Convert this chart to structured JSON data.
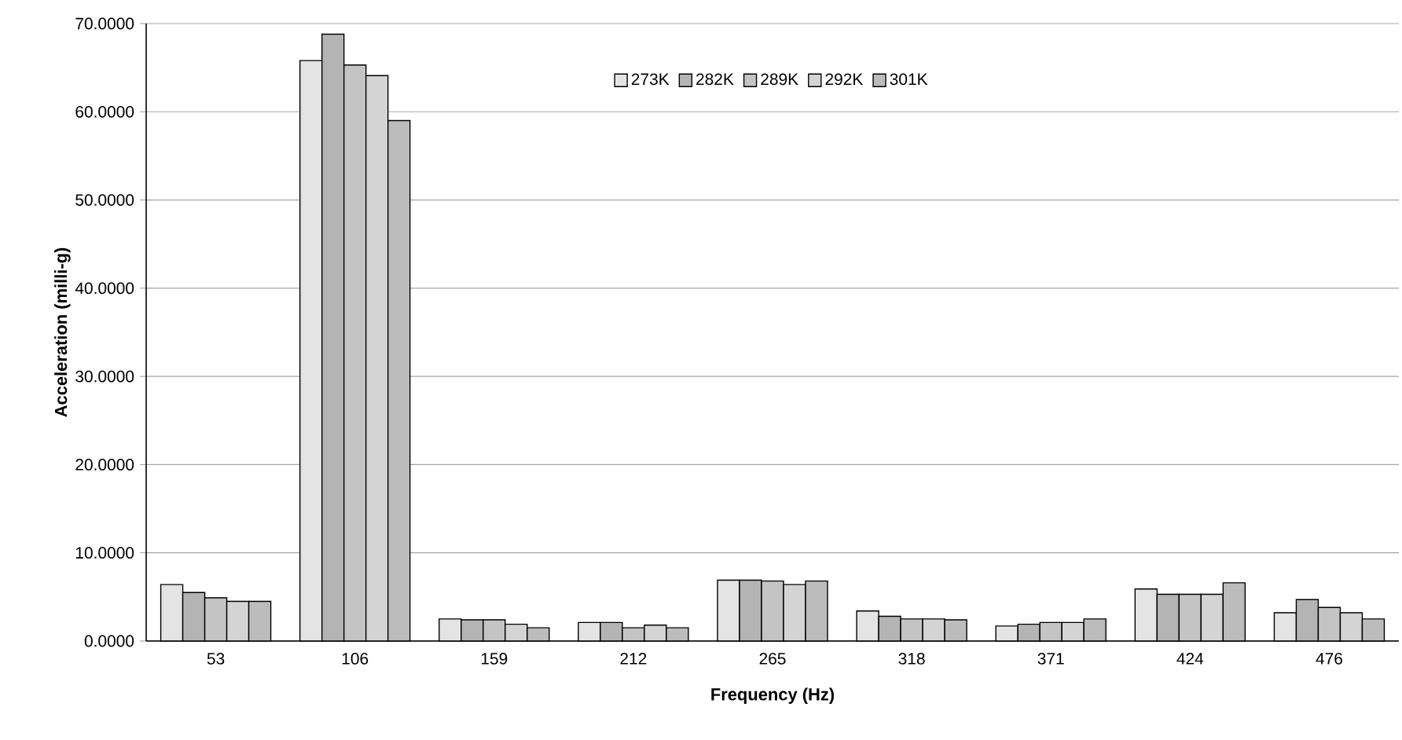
{
  "chart_data": {
    "type": "bar",
    "xlabel": "Frequency (Hz)",
    "ylabel": "Acceleration (milli-g)",
    "categories": [
      "53",
      "106",
      "159",
      "212",
      "265",
      "318",
      "371",
      "424",
      "476"
    ],
    "series": [
      {
        "name": "273K",
        "color": "#e4e4e4",
        "values": [
          6.4,
          65.8,
          2.5,
          2.1,
          6.9,
          3.4,
          1.7,
          5.9,
          3.2
        ]
      },
      {
        "name": "282K",
        "color": "#b4b4b4",
        "values": [
          5.5,
          68.8,
          2.4,
          2.1,
          6.9,
          2.8,
          1.9,
          5.3,
          4.7
        ]
      },
      {
        "name": "289K",
        "color": "#c4c4c4",
        "values": [
          4.9,
          65.3,
          2.4,
          1.5,
          6.8,
          2.5,
          2.1,
          5.3,
          3.8
        ]
      },
      {
        "name": "292K",
        "color": "#d4d4d4",
        "values": [
          4.5,
          64.1,
          1.9,
          1.8,
          6.4,
          2.5,
          2.1,
          5.3,
          3.2
        ]
      },
      {
        "name": "301K",
        "color": "#bcbcbc",
        "values": [
          4.5,
          59.0,
          1.5,
          1.5,
          6.8,
          2.4,
          2.5,
          6.6,
          2.5
        ]
      }
    ],
    "ylim": [
      0,
      70
    ],
    "yticks": [
      {
        "value": 0,
        "label": "0.0000"
      },
      {
        "value": 10,
        "label": "10.0000"
      },
      {
        "value": 20,
        "label": "20.0000"
      },
      {
        "value": 30,
        "label": "30.0000"
      },
      {
        "value": 40,
        "label": "40.0000"
      },
      {
        "value": 50,
        "label": "50.0000"
      },
      {
        "value": 60,
        "label": "60.0000"
      },
      {
        "value": 70,
        "label": "70.0000"
      }
    ],
    "grid": "y",
    "legend": "top"
  }
}
